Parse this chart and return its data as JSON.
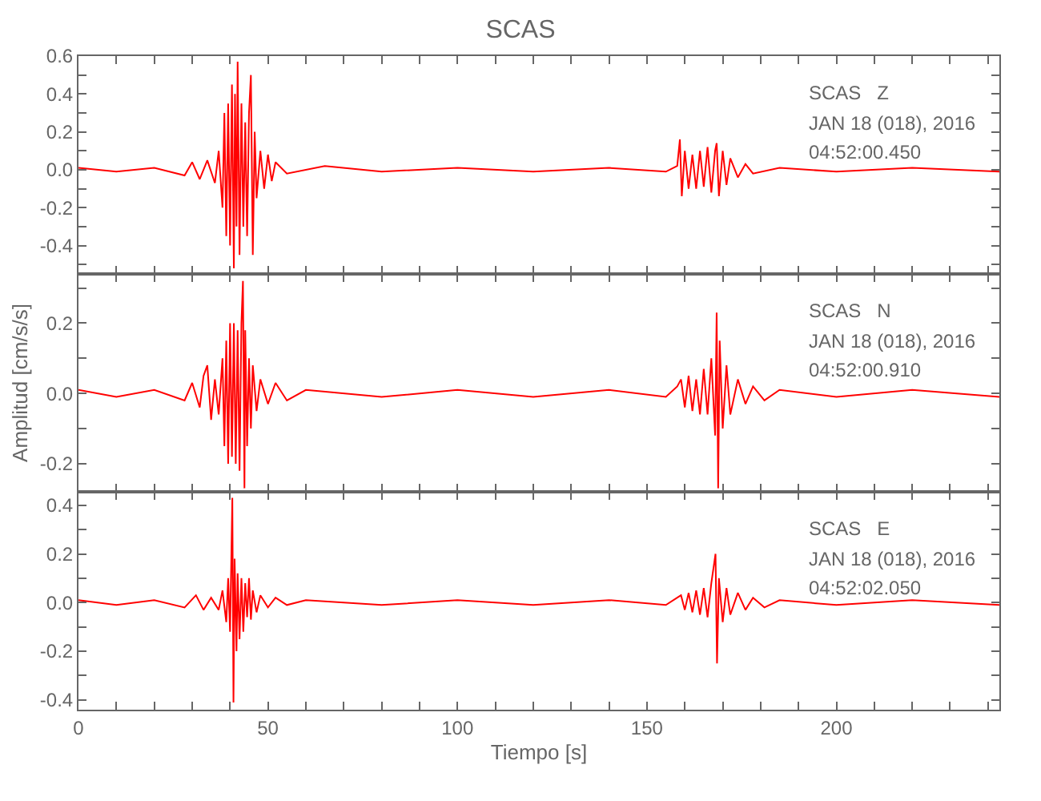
{
  "chart_data": [
    {
      "type": "line",
      "title": "SCAS",
      "tick_labels": "y",
      "x": [
        0,
        10,
        20,
        28,
        30,
        32,
        34,
        36,
        37,
        38,
        38.5,
        39,
        39.5,
        40,
        40.5,
        41,
        41.3,
        41.7,
        42,
        42.5,
        43,
        43.5,
        44,
        44.5,
        45,
        45.5,
        46,
        46.5,
        47,
        48,
        49,
        50,
        51,
        52,
        55,
        65,
        80,
        100,
        120,
        140,
        155,
        158,
        158.7,
        159.2,
        160,
        161,
        162,
        163,
        164,
        165,
        166,
        167,
        168,
        168.4,
        169,
        170,
        171,
        172,
        174,
        176,
        178,
        185,
        200,
        220,
        243
      ],
      "series": [
        {
          "color": "#ff0000",
          "values": [
            0.01,
            -0.01,
            0.01,
            -0.03,
            0.04,
            -0.05,
            0.05,
            -0.07,
            0.1,
            -0.2,
            0.3,
            -0.35,
            0.35,
            -0.4,
            0.45,
            -0.52,
            0.4,
            -0.3,
            0.57,
            -0.45,
            0.35,
            -0.3,
            0.25,
            -0.35,
            0.3,
            0.5,
            -0.45,
            0.2,
            -0.15,
            0.1,
            -0.1,
            0.08,
            -0.06,
            0.04,
            -0.02,
            0.02,
            -0.01,
            0.01,
            -0.01,
            0.01,
            -0.01,
            0.02,
            0.16,
            -0.14,
            0.1,
            -0.1,
            0.08,
            -0.1,
            0.1,
            -0.09,
            0.12,
            -0.12,
            0.1,
            0.14,
            -0.14,
            0.1,
            -0.08,
            0.06,
            -0.04,
            0.03,
            -0.02,
            0.01,
            -0.01,
            0.01,
            -0.01
          ]
        }
      ],
      "xlim": [
        0,
        243
      ],
      "xticks": [
        0,
        {
          "value": 10,
          "label": null
        },
        {
          "value": 20,
          "label": null
        },
        {
          "value": 30,
          "label": null
        },
        {
          "value": 40,
          "label": null
        },
        50,
        {
          "value": 60,
          "label": null
        },
        {
          "value": 70,
          "label": null
        },
        {
          "value": 80,
          "label": null
        },
        {
          "value": 90,
          "label": null
        },
        100,
        {
          "value": 110,
          "label": null
        },
        {
          "value": 120,
          "label": null
        },
        {
          "value": 130,
          "label": null
        },
        {
          "value": 140,
          "label": null
        },
        150,
        {
          "value": 160,
          "label": null
        },
        {
          "value": 170,
          "label": null
        },
        {
          "value": 180,
          "label": null
        },
        {
          "value": 190,
          "label": null
        },
        200,
        {
          "value": 210,
          "label": null
        },
        {
          "value": 220,
          "label": null
        },
        {
          "value": 230,
          "label": null
        },
        {
          "value": 240,
          "label": null
        }
      ],
      "ylim": [
        -0.55,
        0.6
      ],
      "yticks": [
        {
          "value": -0.5,
          "label": null
        },
        {
          "value": -0.4,
          "label": "-0.4"
        },
        {
          "value": -0.3,
          "label": null
        },
        {
          "value": -0.2,
          "label": "-0.2"
        },
        {
          "value": -0.1,
          "label": null
        },
        {
          "value": 0,
          "label": "0.0"
        },
        {
          "value": 0.1,
          "label": null
        },
        {
          "value": 0.2,
          "label": "0.2"
        },
        {
          "value": 0.3,
          "label": null
        },
        {
          "value": 0.4,
          "label": "0.4"
        },
        {
          "value": 0.5,
          "label": null
        },
        {
          "value": 0.6,
          "label": "0.6"
        }
      ],
      "annotations": [
        "SCAS   Z",
        "JAN 18 (018), 2016",
        "04:52:00.450"
      ]
    },
    {
      "type": "line",
      "ylabel": "Amplitud [cm/s/s]",
      "tick_labels": "y",
      "x": [
        0,
        10,
        20,
        28,
        30,
        32,
        33,
        34,
        35,
        36,
        37,
        38,
        38.5,
        39,
        39.5,
        40,
        40.5,
        41,
        41.5,
        42,
        42.5,
        43,
        43.4,
        43.8,
        44,
        44.5,
        45,
        45.5,
        46,
        47,
        48,
        50,
        52,
        55,
        60,
        80,
        100,
        120,
        140,
        155,
        158,
        159,
        160,
        161,
        162,
        163,
        164,
        165,
        166,
        167,
        168,
        168.4,
        168.8,
        169.2,
        170,
        171,
        172,
        174,
        176,
        178,
        181,
        185,
        200,
        220,
        243
      ],
      "series": [
        {
          "color": "#ff0000",
          "values": [
            0.01,
            -0.01,
            0.01,
            -0.02,
            0.03,
            -0.04,
            0.05,
            0.08,
            -0.075,
            0.04,
            -0.06,
            0.1,
            -0.15,
            0.15,
            -0.2,
            0.2,
            -0.18,
            0.2,
            -0.2,
            0.18,
            -0.22,
            0.2,
            0.32,
            -0.27,
            0.18,
            -0.15,
            0.1,
            -0.1,
            0.08,
            -0.05,
            0.04,
            -0.03,
            0.03,
            -0.02,
            0.01,
            -0.01,
            0.01,
            -0.01,
            0.01,
            -0.01,
            0.02,
            0.04,
            -0.04,
            0.05,
            -0.05,
            0.04,
            -0.06,
            0.07,
            -0.06,
            0.1,
            -0.12,
            0.23,
            -0.27,
            0.15,
            -0.1,
            0.08,
            -0.06,
            0.04,
            -0.03,
            0.02,
            -0.02,
            0.01,
            -0.01,
            0.01,
            -0.01
          ]
        }
      ],
      "xlim": [
        0,
        243
      ],
      "xticks": [
        0,
        {
          "value": 10,
          "label": null
        },
        {
          "value": 20,
          "label": null
        },
        {
          "value": 30,
          "label": null
        },
        {
          "value": 40,
          "label": null
        },
        50,
        {
          "value": 60,
          "label": null
        },
        {
          "value": 70,
          "label": null
        },
        {
          "value": 80,
          "label": null
        },
        {
          "value": 90,
          "label": null
        },
        100,
        {
          "value": 110,
          "label": null
        },
        {
          "value": 120,
          "label": null
        },
        {
          "value": 130,
          "label": null
        },
        {
          "value": 140,
          "label": null
        },
        150,
        {
          "value": 160,
          "label": null
        },
        {
          "value": 170,
          "label": null
        },
        {
          "value": 180,
          "label": null
        },
        {
          "value": 190,
          "label": null
        },
        200,
        {
          "value": 210,
          "label": null
        },
        {
          "value": 220,
          "label": null
        },
        {
          "value": 230,
          "label": null
        },
        {
          "value": 240,
          "label": null
        }
      ],
      "ylim": [
        -0.28,
        0.34
      ],
      "yticks": [
        {
          "value": -0.2,
          "label": "-0.2"
        },
        {
          "value": -0.1,
          "label": null
        },
        {
          "value": 0,
          "label": "0.0"
        },
        {
          "value": 0.1,
          "label": null
        },
        {
          "value": 0.2,
          "label": "0.2"
        },
        {
          "value": 0.3,
          "label": null
        }
      ],
      "annotations": [
        "SCAS   N",
        "JAN 18 (018), 2016",
        "04:52:00.910"
      ]
    },
    {
      "type": "line",
      "xlabel": "Tiempo [s]",
      "x": [
        0,
        10,
        20,
        28,
        31,
        33,
        35,
        37,
        38,
        39,
        39.5,
        40,
        40.3,
        40.6,
        40.9,
        41.2,
        41.7,
        42,
        42.5,
        43,
        43.5,
        44,
        44.5,
        45,
        45.5,
        46,
        47,
        48,
        50,
        52,
        55,
        60,
        80,
        100,
        120,
        140,
        155,
        158,
        159,
        160,
        161,
        162,
        163,
        164,
        165,
        166,
        167,
        168.1,
        168.5,
        169,
        170,
        171,
        172,
        174,
        176,
        178,
        181,
        185,
        200,
        220,
        243
      ],
      "series": [
        {
          "color": "#ff0000",
          "values": [
            0.01,
            -0.01,
            0.01,
            -0.02,
            0.03,
            -0.03,
            0.02,
            -0.03,
            0.05,
            -0.08,
            0.1,
            -0.12,
            0.15,
            0.43,
            -0.41,
            0.18,
            -0.2,
            0.12,
            -0.15,
            0.1,
            -0.12,
            0.08,
            -0.06,
            0.1,
            -0.07,
            0.05,
            -0.04,
            0.03,
            -0.02,
            0.02,
            -0.01,
            0.01,
            -0.01,
            0.01,
            -0.01,
            0.01,
            -0.01,
            0.02,
            0.03,
            -0.03,
            0.04,
            -0.04,
            0.05,
            -0.05,
            0.06,
            -0.06,
            0.08,
            0.2,
            -0.25,
            0.1,
            -0.08,
            0.06,
            -0.05,
            0.04,
            -0.03,
            0.02,
            -0.02,
            0.01,
            -0.01,
            0.01,
            -0.01
          ]
        }
      ],
      "xlim": [
        0,
        243
      ],
      "xticks": [
        0,
        {
          "value": 10,
          "label": null
        },
        {
          "value": 20,
          "label": null
        },
        {
          "value": 30,
          "label": null
        },
        {
          "value": 40,
          "label": null
        },
        50,
        {
          "value": 60,
          "label": null
        },
        {
          "value": 70,
          "label": null
        },
        {
          "value": 80,
          "label": null
        },
        {
          "value": 90,
          "label": null
        },
        100,
        {
          "value": 110,
          "label": null
        },
        {
          "value": 120,
          "label": null
        },
        {
          "value": 130,
          "label": null
        },
        {
          "value": 140,
          "label": null
        },
        150,
        {
          "value": 160,
          "label": null
        },
        {
          "value": 170,
          "label": null
        },
        {
          "value": 180,
          "label": null
        },
        {
          "value": 190,
          "label": null
        },
        200,
        {
          "value": 210,
          "label": null
        },
        {
          "value": 220,
          "label": null
        },
        {
          "value": 230,
          "label": null
        },
        {
          "value": 240,
          "label": null
        }
      ],
      "ylim": [
        -0.44,
        0.455
      ],
      "yticks": [
        {
          "value": -0.4,
          "label": "-0.4"
        },
        {
          "value": -0.3,
          "label": null
        },
        {
          "value": -0.2,
          "label": "-0.2"
        },
        {
          "value": -0.1,
          "label": null
        },
        {
          "value": 0,
          "label": "0.0"
        },
        {
          "value": 0.1,
          "label": null
        },
        {
          "value": 0.2,
          "label": "0.2"
        },
        {
          "value": 0.3,
          "label": null
        },
        {
          "value": 0.4,
          "label": "0.4"
        }
      ],
      "annotations": [
        "SCAS   E",
        "JAN 18 (018), 2016",
        "04:52:02.050"
      ]
    }
  ]
}
